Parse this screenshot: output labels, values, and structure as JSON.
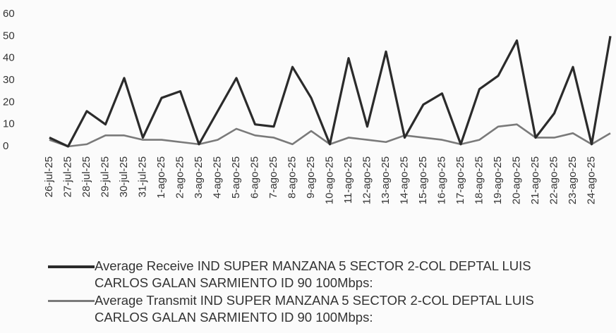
{
  "chart_data": {
    "type": "line",
    "categories": [
      "26-jul-25",
      "27-jul-25",
      "28-jul-25",
      "29-jul-25",
      "30-jul-25",
      "31-jul-25",
      "1-ago-25",
      "2-ago-25",
      "3-ago-25",
      "4-ago-25",
      "5-ago-25",
      "6-ago-25",
      "7-ago-25",
      "8-ago-25",
      "9-ago-25",
      "10-ago-25",
      "11-ago-25",
      "12-ago-25",
      "13-ago-25",
      "14-ago-25",
      "15-ago-25",
      "16-ago-25",
      "17-ago-25",
      "18-ago-25",
      "19-ago-25",
      "20-ago-25",
      "21-ago-25",
      "22-ago-25",
      "23-ago-25",
      "24-ago-25",
      null
    ],
    "series": [
      {
        "name": "Average Receive IND SUPER MANZANA 5 SECTOR 2-COL DEPTAL LUIS CARLOS GALAN SARMIENTO ID 90 100Mbps:",
        "color": "#2b2b2b",
        "values": [
          4,
          0,
          16,
          10,
          31,
          4,
          22,
          25,
          1,
          16,
          31,
          10,
          9,
          36,
          22,
          1,
          40,
          9,
          43,
          4,
          19,
          24,
          1,
          26,
          32,
          48,
          4,
          15,
          36,
          1,
          50
        ]
      },
      {
        "name": "Average Transmit IND SUPER MANZANA 5 SECTOR 2-COL DEPTAL LUIS CARLOS GALAN SARMIENTO ID 90 100Mbps:",
        "color": "#7a7a7a",
        "values": [
          3,
          0,
          1,
          5,
          5,
          3,
          3,
          2,
          1,
          3,
          8,
          5,
          4,
          1,
          7,
          1,
          4,
          3,
          2,
          5,
          4,
          3,
          1,
          3,
          9,
          10,
          4,
          4,
          6,
          1,
          6
        ]
      }
    ],
    "ylim": [
      0,
      60
    ],
    "yticks": [
      0,
      10,
      20,
      30,
      40,
      50,
      60
    ]
  }
}
